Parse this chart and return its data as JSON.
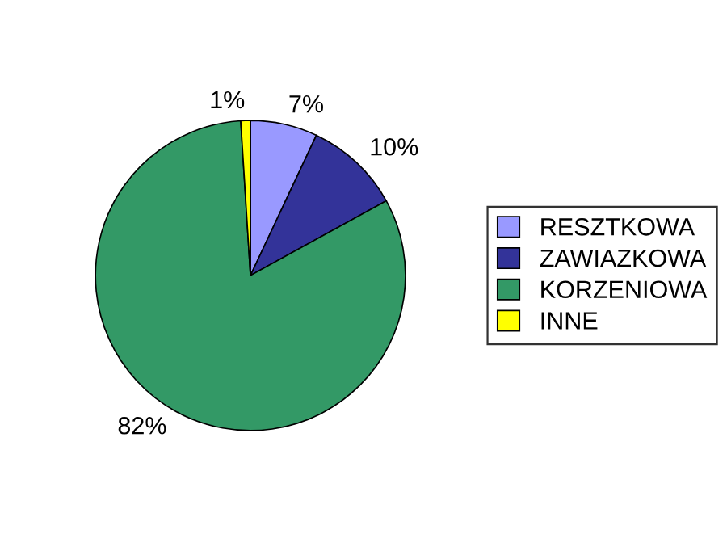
{
  "chart_data": {
    "type": "pie",
    "categories": [
      "RESZTKOWA",
      "ZAWIAZKOWA",
      "KORZENIOWA",
      "INNE"
    ],
    "values": [
      7,
      10,
      82,
      1
    ],
    "value_labels": [
      "7%",
      "10%",
      "82%",
      "1%"
    ],
    "colors": [
      "#9999ff",
      "#333399",
      "#339966",
      "#ffff00"
    ],
    "legend": "right"
  }
}
